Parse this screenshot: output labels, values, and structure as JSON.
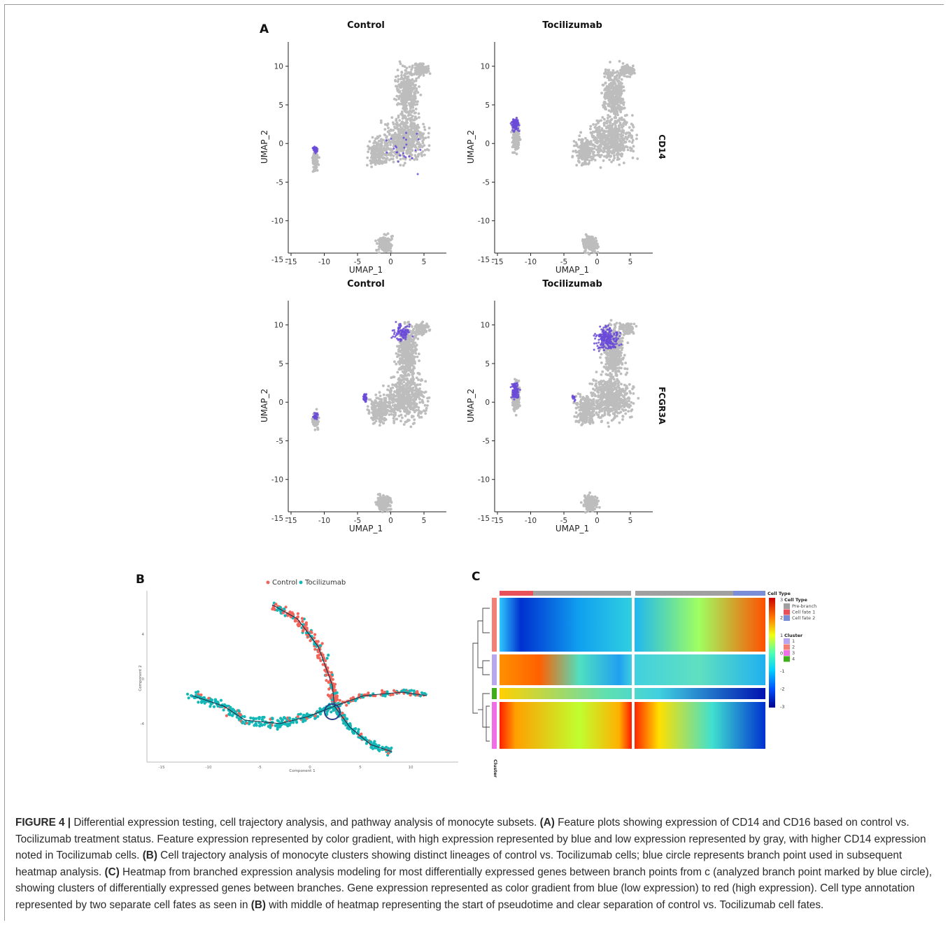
{
  "panel_a": {
    "label": "A",
    "rows": [
      {
        "gene": "CD14",
        "panels": [
          {
            "title": "Control"
          },
          {
            "title": "Tocilizumab"
          }
        ]
      },
      {
        "gene": "FCGR3A",
        "panels": [
          {
            "title": "Control"
          },
          {
            "title": "Tocilizumab"
          }
        ]
      }
    ],
    "xlabel": "UMAP_1",
    "ylabel": "UMAP_2",
    "xticks": [
      "-15",
      "-10",
      "-5",
      "0",
      "5"
    ],
    "yticks": [
      "10",
      "5",
      "0",
      "-5",
      "-10",
      "-15"
    ],
    "colors": {
      "low": "#bdbdbd",
      "high": "#6a4ad8"
    }
  },
  "panel_b": {
    "label": "B",
    "legend": [
      {
        "name": "Control",
        "color": "#f0645a"
      },
      {
        "name": "Tocilizumab",
        "color": "#14b7b7"
      }
    ],
    "xlabel": "Component 1",
    "ylabel": "Component 2",
    "xticks": [
      "-15",
      "-10",
      "-5",
      "0",
      "5",
      "10"
    ],
    "yticks": [
      "4",
      "0",
      "-4"
    ]
  },
  "panel_c": {
    "label": "C",
    "bar_label": "Cell Type",
    "colorbar_ticks": [
      "3",
      "2",
      "1",
      "0",
      "-1",
      "-2",
      "-3"
    ],
    "legend_celltype_title": "Cell Type",
    "legend_celltype": [
      {
        "name": "Pre-branch",
        "color": "#a0a0a0"
      },
      {
        "name": "Cell fate 1",
        "color": "#e8505a"
      },
      {
        "name": "Cell fate 2",
        "color": "#7a8ed8"
      }
    ],
    "legend_cluster_title": "Cluster",
    "legend_cluster": [
      {
        "name": "1",
        "color": "#b9a6f0"
      },
      {
        "name": "2",
        "color": "#f47f76"
      },
      {
        "name": "3",
        "color": "#f06ee6"
      },
      {
        "name": "4",
        "color": "#3fae1a"
      }
    ],
    "cluster_axis_label": "Cluster"
  },
  "caption": {
    "figure_label": "FIGURE 4 |",
    "intro": " Differential expression testing, cell trajectory analysis, and pathway analysis of monocyte subsets. ",
    "a_label": "(A)",
    "a_text": " Feature plots showing expression of CD14 and CD16 based on control vs. Tocilizumab treatment status. Feature expression represented by color gradient, with high expression represented by blue and low expression represented by gray, with higher CD14 expression noted in Tocilizumab cells. ",
    "b_label": "(B)",
    "b_text": " Cell trajectory analysis of monocyte clusters showing distinct lineages of control vs. Tocilizumab cells; blue circle represents branch point used in subsequent heatmap analysis. ",
    "c_label": "(C)",
    "c_text": " Heatmap from branched expression analysis modeling for most differentially expressed genes between branch points from c (analyzed branch point marked by blue circle), showing clusters of differentially expressed genes between branches. Gene expression represented as color gradient from blue (low expression) to red (high expression). Cell type annotation represented by two separate cell fates as seen in ",
    "c_ref": "(B)",
    "c_tail": " with middle of heatmap representing the start of pseudotime and clear separation of control vs. Tocilizumab cell fates."
  }
}
